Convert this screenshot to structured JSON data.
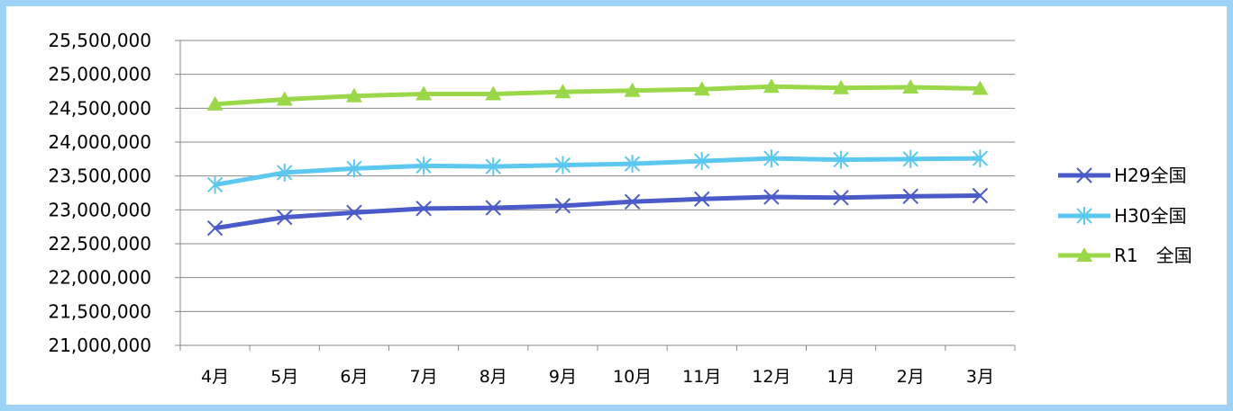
{
  "chart_data": {
    "type": "line",
    "categories": [
      "4月",
      "5月",
      "6月",
      "7月",
      "8月",
      "9月",
      "10月",
      "11月",
      "12月",
      "1月",
      "2月",
      "3月"
    ],
    "ylim": [
      21000000,
      25500000
    ],
    "ytick_step": 500000,
    "grid": true,
    "legend_position": "right",
    "series": [
      {
        "name": "H29全国",
        "color": "#4a5ac8",
        "marker": "x",
        "values": [
          22730000,
          22890000,
          22960000,
          23020000,
          23030000,
          23060000,
          23120000,
          23160000,
          23190000,
          23180000,
          23200000,
          23210000
        ]
      },
      {
        "name": "H30全国",
        "color": "#5cc8f0",
        "marker": "asterisk",
        "values": [
          23370000,
          23550000,
          23610000,
          23650000,
          23640000,
          23660000,
          23680000,
          23720000,
          23760000,
          23740000,
          23750000,
          23760000
        ]
      },
      {
        "name": "R1　全国",
        "color": "#9ad84a",
        "marker": "triangle",
        "values": [
          24560000,
          24630000,
          24680000,
          24710000,
          24710000,
          24740000,
          24760000,
          24780000,
          24820000,
          24800000,
          24810000,
          24790000
        ]
      }
    ]
  }
}
